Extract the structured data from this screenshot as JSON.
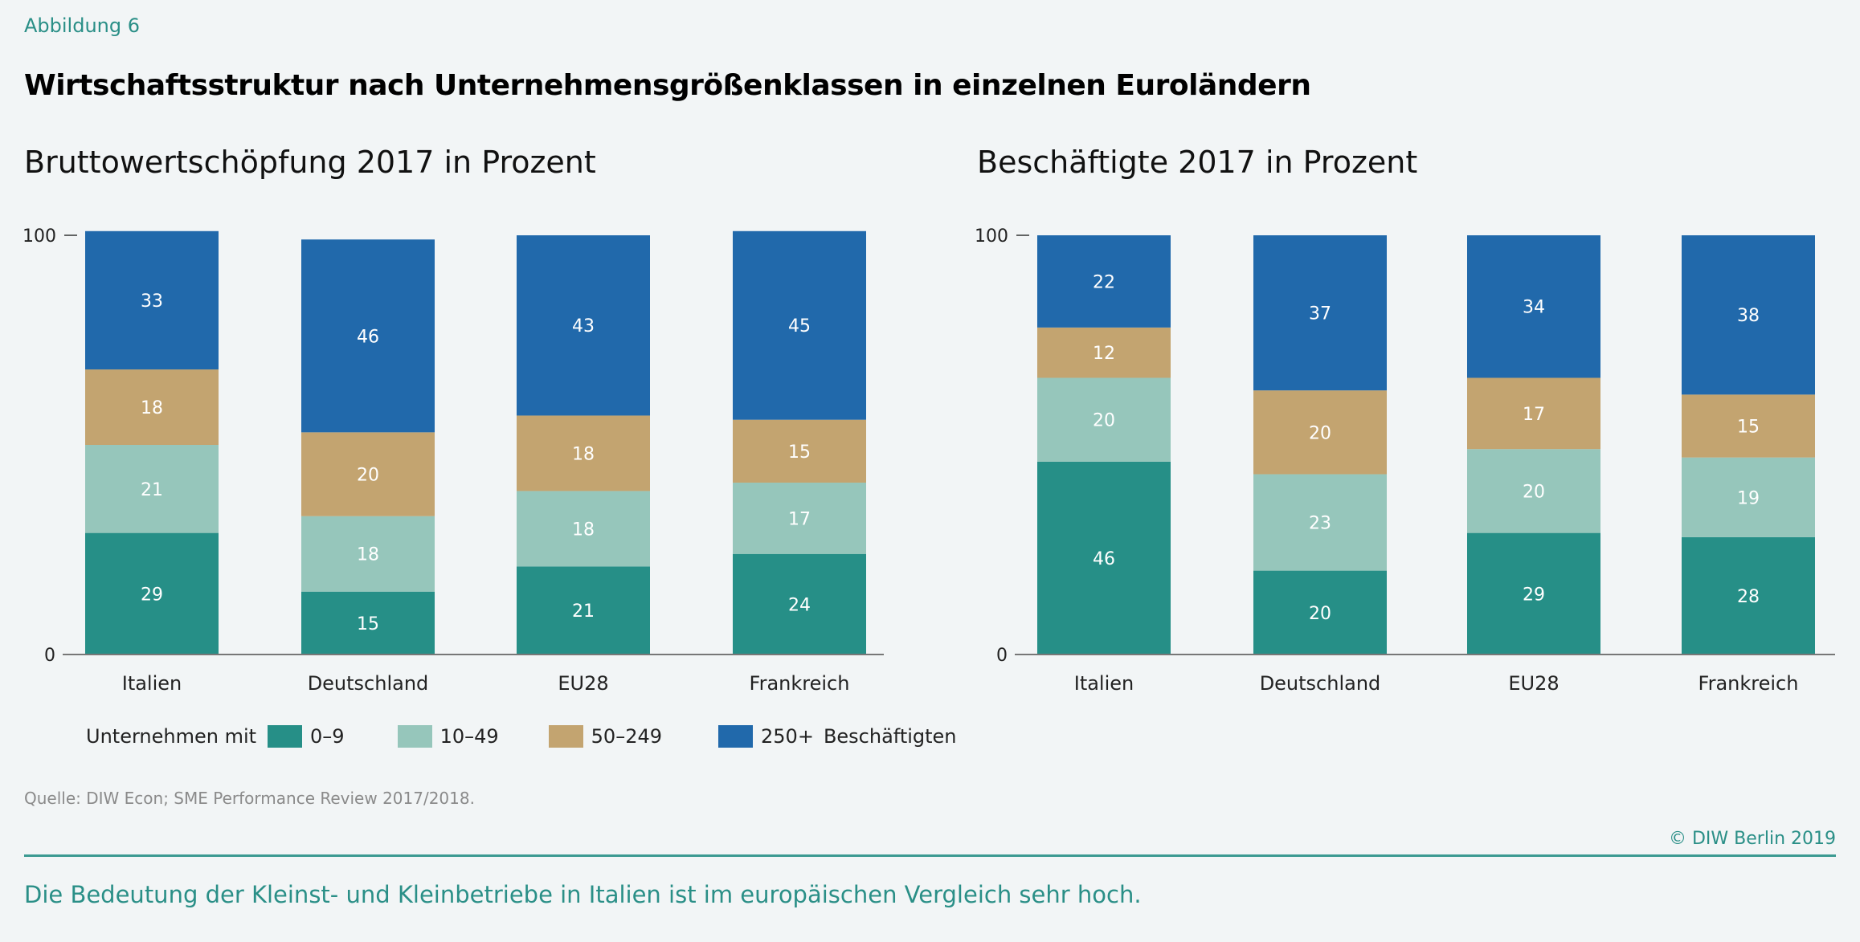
{
  "figure_label": "Abbildung 6",
  "title": "Wirtschaftsstruktur nach Unternehmensgrößenklassen in einzelnen Euroländern",
  "legend": {
    "prefix": "Unternehmen mit",
    "suffix": "Beschäftigten",
    "items": [
      {
        "label": "0–9",
        "color": "#268f87"
      },
      {
        "label": "10–49",
        "color": "#96c6bb"
      },
      {
        "label": "50–249",
        "color": "#c3a470"
      },
      {
        "label": "250+",
        "color": "#2169ab"
      }
    ]
  },
  "source": "Quelle: DIW Econ; SME Performance Review 2017/2018.",
  "copyright": "© DIW Berlin 2019",
  "caption": "Die Bedeutung der Kleinst- und Kleinbetriebe in Italien ist im europäischen Vergleich sehr hoch.",
  "chart_data": [
    {
      "type": "bar",
      "stacked": true,
      "title": "Bruttowertschöpfung 2017 in Prozent",
      "xlabel": "",
      "ylabel": "",
      "ylim": [
        0,
        100
      ],
      "yticks": [
        0,
        100
      ],
      "grid": false,
      "categories": [
        "Italien",
        "Deutschland",
        "EU28",
        "Frankreich"
      ],
      "series": [
        {
          "name": "0–9",
          "color": "#268f87",
          "values": [
            29,
            15,
            21,
            24
          ]
        },
        {
          "name": "10–49",
          "color": "#96c6bb",
          "values": [
            21,
            18,
            18,
            17
          ]
        },
        {
          "name": "50–249",
          "color": "#c3a470",
          "values": [
            18,
            20,
            18,
            15
          ]
        },
        {
          "name": "250+",
          "color": "#2169ab",
          "values": [
            33,
            46,
            43,
            45
          ]
        }
      ]
    },
    {
      "type": "bar",
      "stacked": true,
      "title": "Beschäftigte 2017 in Prozent",
      "xlabel": "",
      "ylabel": "",
      "ylim": [
        0,
        100
      ],
      "yticks": [
        0,
        100
      ],
      "grid": false,
      "categories": [
        "Italien",
        "Deutschland",
        "EU28",
        "Frankreich"
      ],
      "series": [
        {
          "name": "0–9",
          "color": "#268f87",
          "values": [
            46,
            20,
            29,
            28
          ]
        },
        {
          "name": "10–49",
          "color": "#96c6bb",
          "values": [
            20,
            23,
            20,
            19
          ]
        },
        {
          "name": "50–249",
          "color": "#c3a470",
          "values": [
            12,
            20,
            17,
            15
          ]
        },
        {
          "name": "250+",
          "color": "#2169ab",
          "values": [
            22,
            37,
            34,
            38
          ]
        }
      ]
    }
  ]
}
